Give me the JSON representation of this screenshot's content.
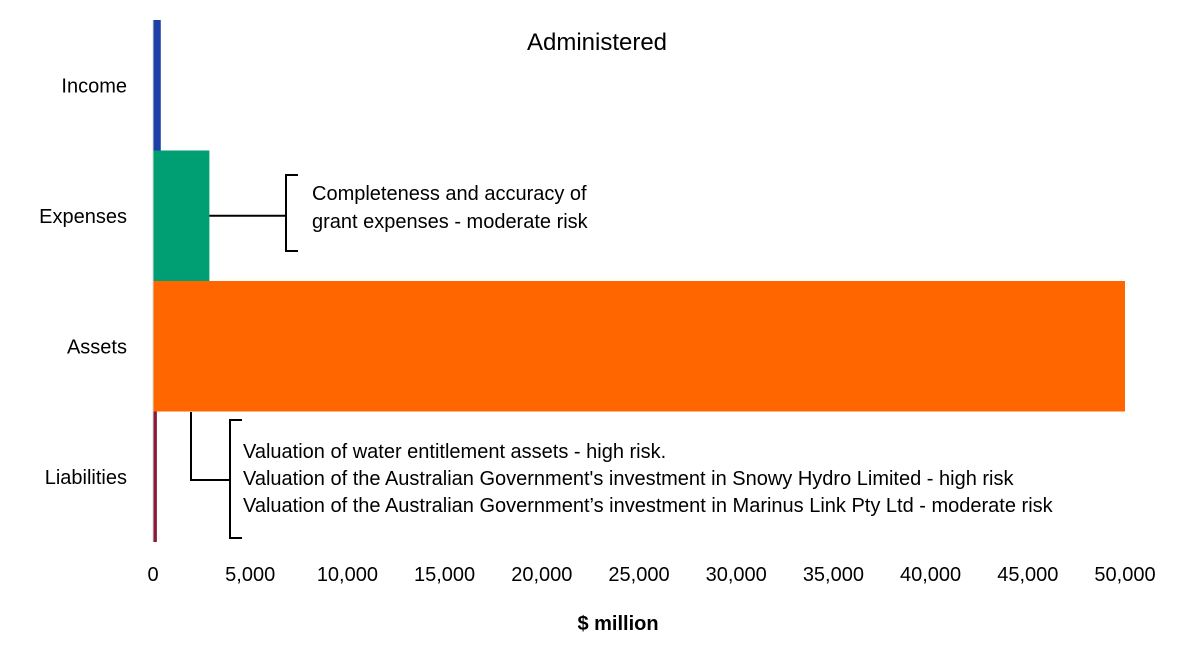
{
  "chart_data": {
    "type": "bar",
    "orientation": "horizontal",
    "title": "Administered",
    "xlabel": "$ million",
    "ylabel": "",
    "xlim": [
      0,
      50000
    ],
    "xticks": [
      0,
      5000,
      10000,
      15000,
      20000,
      25000,
      30000,
      35000,
      40000,
      45000,
      50000
    ],
    "xtick_labels": [
      "0",
      "5,000",
      "10,000",
      "15,000",
      "20,000",
      "25,000",
      "30,000",
      "35,000",
      "40,000",
      "45,000",
      "50,000"
    ],
    "grid": false,
    "categories": [
      "Income",
      "Expenses",
      "Assets",
      "Liabilities"
    ],
    "values": [
      400,
      2900,
      50000,
      200
    ],
    "colors": [
      "#1f3fa8",
      "#009e73",
      "#ff6600",
      "#8b1a3a"
    ],
    "annotations": [
      {
        "category": "Expenses",
        "lines": [
          "Completeness and accuracy of",
          "grant expenses - moderate risk"
        ]
      },
      {
        "category": "Liabilities",
        "lines": [
          "Valuation of water entitlement assets - high risk.",
          "Valuation of the Australian Government's investment in Snowy Hydro Limited - high risk",
          "Valuation of the Australian Government’s investment in Marinus Link Pty Ltd - moderate risk"
        ]
      }
    ]
  }
}
